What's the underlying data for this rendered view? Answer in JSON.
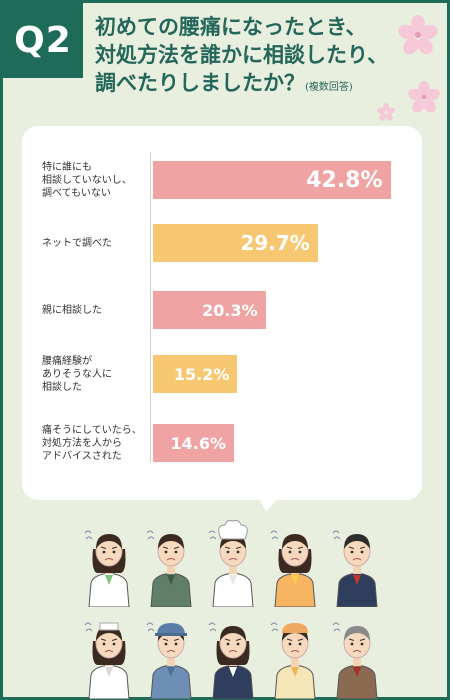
{
  "question": {
    "badge": "Q2",
    "title_lines": [
      "初めての腰痛になったとき、",
      "対処方法を誰かに相談したり、",
      "調べたりしましたか？"
    ],
    "note": "(複数回答)"
  },
  "chart_data": {
    "type": "bar",
    "orientation": "horizontal",
    "categories": [
      "特に誰にも相談していないし、調べてもいない",
      "ネットで調べた",
      "親に相談した",
      "腰痛経験がありそうな人に相談した",
      "痛そうにしていたら、対処方法を人からアドバイスされた"
    ],
    "display_labels": [
      "特に誰にも\n相談していないし、\n調べてもいない",
      "ネットで調べた",
      "親に相談した",
      "腰痛経験が\nありそうな人に\n相談した",
      "痛そうにしていたら、\n対処方法を人から\nアドバイスされた"
    ],
    "values": [
      42.8,
      29.7,
      20.3,
      15.2,
      14.6
    ],
    "value_labels": [
      "42.8%",
      "29.7%",
      "20.3%",
      "15.2%",
      "14.6%"
    ],
    "bar_colors": [
      "#f0a3a3",
      "#f7c772",
      "#f0a3a3",
      "#f7c772",
      "#f0a3a3"
    ],
    "unit": "%"
  },
  "colors": {
    "accent": "#1f6b5a",
    "background": "#e9efdf",
    "bar_pink": "#f0a3a3",
    "bar_orange": "#f7c772"
  },
  "illustration": {
    "people_rows": [
      [
        "office-woman",
        "worker-man-green-vest",
        "chef",
        "shop-woman-apron",
        "businessman"
      ],
      [
        "nurse",
        "factory-worker-cap",
        "office-woman-vest",
        "cook-woman",
        "older-businessman"
      ]
    ]
  }
}
